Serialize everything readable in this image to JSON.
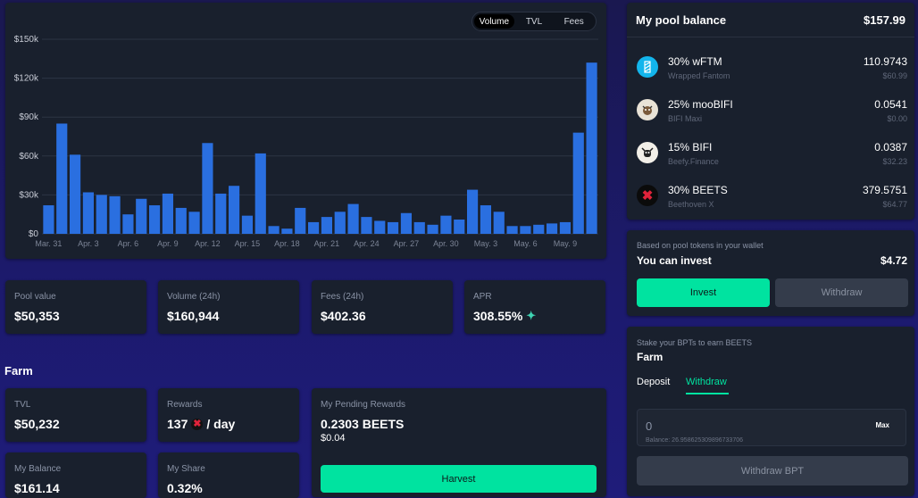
{
  "chart": {
    "toggle": [
      "Volume",
      "TVL",
      "Fees"
    ],
    "active_toggle": 0
  },
  "chart_data": {
    "type": "bar",
    "ylim": [
      0,
      150000
    ],
    "yticks": [
      "$150k",
      "$120k",
      "$90k",
      "$60k",
      "$30k",
      "$0"
    ],
    "ytick_values": [
      150000,
      120000,
      90000,
      60000,
      30000,
      0
    ],
    "xtick_labels": [
      "Mar. 31",
      "Apr. 3",
      "Apr. 6",
      "Apr. 9",
      "Apr. 12",
      "Apr. 15",
      "Apr. 18",
      "Apr. 21",
      "Apr. 24",
      "Apr. 27",
      "Apr. 30",
      "May. 3",
      "May. 6",
      "May. 9"
    ],
    "xtick_index": [
      1,
      4,
      7,
      10,
      13,
      16,
      19,
      22,
      25,
      28,
      31,
      34,
      37,
      40
    ],
    "values": [
      22000,
      85000,
      61000,
      32000,
      30000,
      29000,
      15000,
      27000,
      22000,
      31000,
      20000,
      17000,
      70000,
      31000,
      37000,
      14000,
      62000,
      6000,
      4000,
      20000,
      9000,
      13000,
      17000,
      23000,
      13000,
      10000,
      9000,
      16000,
      9000,
      7000,
      14000,
      11000,
      34000,
      22000,
      17000,
      6000,
      6000,
      7000,
      8000,
      9000,
      78000,
      132000
    ],
    "bar_color": "#2a6fe0",
    "grid": true
  },
  "stats": [
    {
      "label": "Pool value",
      "value": "$50,353"
    },
    {
      "label": "Volume (24h)",
      "value": "$160,944"
    },
    {
      "label": "Fees (24h)",
      "value": "$402.36"
    },
    {
      "label": "APR",
      "value": "308.55%"
    }
  ],
  "farm": {
    "title": "Farm",
    "tvl_label": "TVL",
    "tvl_value": "$50,232",
    "rewards_label": "Rewards",
    "rewards_amount": "137",
    "rewards_unit": "/ day",
    "pending_label": "My Pending Rewards",
    "pending_value": "0.2303 BEETS",
    "pending_usd": "$0.04",
    "harvest": "Harvest",
    "balance_label": "My Balance",
    "balance_value": "$161.14",
    "share_label": "My Share",
    "share_value": "0.32%"
  },
  "pool": {
    "title": "My pool balance",
    "total": "$157.99",
    "tokens": [
      {
        "name": "30% wFTM",
        "sub": "Wrapped Fantom",
        "amount": "110.9743",
        "usd": "$60.99",
        "icon": "fantom-icon",
        "color": "#13b5ec"
      },
      {
        "name": "25% mooBIFI",
        "sub": "BIFI Maxi",
        "amount": "0.0541",
        "usd": "$0.00",
        "icon": "moobifi-icon",
        "color": "#e8e2d6"
      },
      {
        "name": "15% BIFI",
        "sub": "Beefy.Finance",
        "amount": "0.0387",
        "usd": "$32.23",
        "icon": "beefy-icon",
        "color": "#f2efe8"
      },
      {
        "name": "30% BEETS",
        "sub": "Beethoven X",
        "amount": "379.5751",
        "usd": "$64.77",
        "icon": "beets-icon",
        "color": "#e0233b"
      }
    ]
  },
  "invest": {
    "hint": "Based on pool tokens in your wallet",
    "label": "You can invest",
    "value": "$4.72",
    "invest_btn": "Invest",
    "withdraw_btn": "Withdraw"
  },
  "stake": {
    "hint": "Stake your BPTs to earn BEETS",
    "title": "Farm",
    "tabs": [
      "Deposit",
      "Withdraw"
    ],
    "active_tab": 1,
    "input_value": "0",
    "max": "Max",
    "balance": "Balance: 26.958625309896733706",
    "withdraw_bpt": "Withdraw BPT"
  },
  "colors": {
    "accent": "#00e3a0",
    "card": "#19202d",
    "bar": "#2a6fe0"
  }
}
